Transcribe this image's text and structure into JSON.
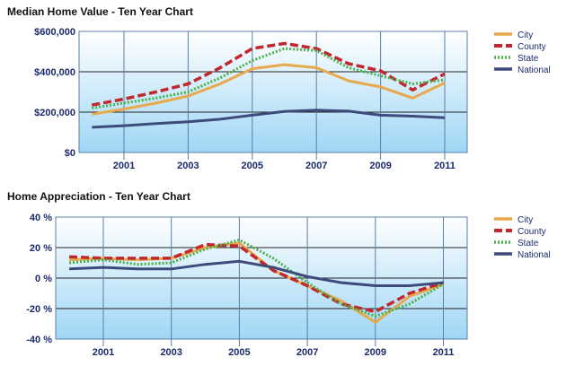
{
  "chart_data": [
    {
      "type": "line",
      "title": "Median Home Value - Ten Year Chart",
      "xlabel": "",
      "ylabel": "",
      "x": [
        2000,
        2001,
        2002,
        2003,
        2004,
        2005,
        2006,
        2007,
        2008,
        2009,
        2010,
        2011
      ],
      "x_tick_labels": [
        "2001",
        "2003",
        "2005",
        "2007",
        "2009",
        "2011"
      ],
      "x_tick_values": [
        2001,
        2003,
        2005,
        2007,
        2009,
        2011
      ],
      "ylim": [
        0,
        600000
      ],
      "y_ticks": [
        0,
        200000,
        400000,
        600000
      ],
      "y_tick_labels": [
        "$0",
        "$200,000",
        "$400,000",
        "$600,000"
      ],
      "grid": true,
      "legend_placement": "right",
      "series": [
        {
          "name": "City",
          "color": "#e8a84c",
          "style": "solid",
          "values": [
            190000,
            215000,
            245000,
            280000,
            340000,
            415000,
            435000,
            420000,
            355000,
            325000,
            270000,
            345000
          ]
        },
        {
          "name": "County",
          "color": "#c0282d",
          "style": "dashed",
          "values": [
            235000,
            265000,
            300000,
            340000,
            420000,
            515000,
            540000,
            515000,
            440000,
            405000,
            310000,
            390000
          ]
        },
        {
          "name": "State",
          "color": "#4ab04a",
          "style": "dotted",
          "values": [
            220000,
            245000,
            270000,
            300000,
            370000,
            455000,
            515000,
            505000,
            420000,
            380000,
            340000,
            360000
          ]
        },
        {
          "name": "National",
          "color": "#3d4a7a",
          "style": "solid",
          "values": [
            125000,
            133000,
            143000,
            152000,
            165000,
            185000,
            203000,
            210000,
            205000,
            185000,
            180000,
            172000
          ]
        }
      ]
    },
    {
      "type": "line",
      "title": "Home Appreciation - Ten Year Chart",
      "xlabel": "",
      "ylabel": "",
      "x": [
        2000,
        2001,
        2002,
        2003,
        2004,
        2005,
        2006,
        2007,
        2008,
        2009,
        2010,
        2011
      ],
      "x_tick_labels": [
        "2001",
        "2003",
        "2005",
        "2007",
        "2009",
        "2011"
      ],
      "x_tick_values": [
        2001,
        2003,
        2005,
        2007,
        2009,
        2011
      ],
      "ylim": [
        -40,
        40
      ],
      "y_ticks": [
        -40,
        -20,
        0,
        20,
        40
      ],
      "y_tick_labels": [
        "-40 %",
        "-20 %",
        "0 %",
        "20 %",
        "40 %"
      ],
      "grid": true,
      "legend_placement": "right",
      "series": [
        {
          "name": "City",
          "color": "#e8a84c",
          "style": "solid",
          "values": [
            12,
            13,
            12,
            13,
            20,
            23,
            5,
            -5,
            -15,
            -29,
            -12,
            -4
          ]
        },
        {
          "name": "County",
          "color": "#c0282d",
          "style": "dashed",
          "values": [
            14,
            13,
            13,
            13,
            22,
            21,
            5,
            -5,
            -17,
            -22,
            -10,
            -3
          ]
        },
        {
          "name": "State",
          "color": "#4ab04a",
          "style": "dotted",
          "values": [
            10,
            12,
            9,
            10,
            19,
            25,
            13,
            -3,
            -17,
            -25,
            -17,
            -4
          ]
        },
        {
          "name": "National",
          "color": "#3d4a7a",
          "style": "solid",
          "values": [
            6,
            7,
            6,
            6,
            9,
            11,
            7,
            1,
            -3,
            -5,
            -5,
            -3
          ]
        }
      ]
    }
  ]
}
